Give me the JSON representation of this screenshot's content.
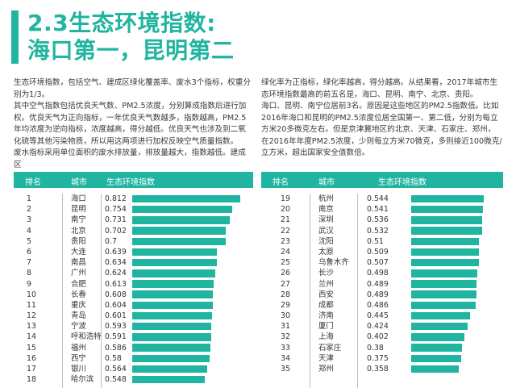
{
  "section": {
    "title_line1": "2.3生态环境指数:",
    "title_line2": "海口第一，昆明第二",
    "accent_color": "#1fb5a0"
  },
  "intro": {
    "left": [
      "生态环境指数，包括空气、建成区绿化覆盖率、废水3个指标，权重分别为1/3。",
      "其中空气指数包括优良天气数、PM2.5浓度，分别算成指数后进行加权。优良天气为正向指标，一年优良天气数越多，指数越高，PM2.5年均浓度为逆向指标，浓度越高，得分越低。优良天气也涉及到二氧化硫等其他污染物质，所以用这两项进行加权反映空气质量指数。",
      "废水指标采用单位面积的废水排放量，排放量越大，指数越低。建成区"
    ],
    "right": [
      "绿化率为正指标，绿化率越高，得分越高。从结果看，2017年城市生态环境指数最高的前五名是，海口、昆明、南宁、北京、贵阳。",
      "海口、昆明、南宁位居前3名。原因是这些地区的PM2.5指数低。比如2016年海口和昆明的PM2.5浓度位居全国第一、第二低，分别为每立方米20多微克左右。但是京津冀地区的北京、天津、石家庄、郑州，在2016年年度PM2.5浓度，少则每立方米70微克，多则接近100微克/立方米，超出国家安全值数倍。"
    ]
  },
  "table": {
    "headers": {
      "rank": "排名",
      "city": "城市",
      "index": "生态环境指数"
    },
    "left_rows": [
      {
        "rank": "1",
        "city": "海口",
        "value": "0.812"
      },
      {
        "rank": "2",
        "city": "昆明",
        "value": "0.754"
      },
      {
        "rank": "3",
        "city": "南宁",
        "value": "0.731"
      },
      {
        "rank": "4",
        "city": "北京",
        "value": "0.702"
      },
      {
        "rank": "5",
        "city": "贵阳",
        "value": "0.7"
      },
      {
        "rank": "6",
        "city": "大连",
        "value": "0.639"
      },
      {
        "rank": "7",
        "city": "南昌",
        "value": "0.634"
      },
      {
        "rank": "8",
        "city": "广州",
        "value": "0.624"
      },
      {
        "rank": "9",
        "city": "合肥",
        "value": "0.613"
      },
      {
        "rank": "10",
        "city": "长春",
        "value": "0.608"
      },
      {
        "rank": "11",
        "city": "重庆",
        "value": "0.604"
      },
      {
        "rank": "12",
        "city": "青岛",
        "value": "0.601"
      },
      {
        "rank": "13",
        "city": "宁波",
        "value": "0.593"
      },
      {
        "rank": "14",
        "city": "呼和浩特",
        "value": "0.591"
      },
      {
        "rank": "15",
        "city": "福州",
        "value": "0.586"
      },
      {
        "rank": "16",
        "city": "西宁",
        "value": "0.58"
      },
      {
        "rank": "17",
        "city": "银川",
        "value": "0.564"
      },
      {
        "rank": "18",
        "city": "哈尔滨",
        "value": "0.548"
      }
    ],
    "right_rows": [
      {
        "rank": "19",
        "city": "杭州",
        "value": "0.544"
      },
      {
        "rank": "20",
        "city": "南京",
        "value": "0.541"
      },
      {
        "rank": "21",
        "city": "深圳",
        "value": "0.536"
      },
      {
        "rank": "22",
        "city": "武汉",
        "value": "0.532"
      },
      {
        "rank": "23",
        "city": "沈阳",
        "value": "0.51"
      },
      {
        "rank": "24",
        "city": "太原",
        "value": "0.509"
      },
      {
        "rank": "25",
        "city": "乌鲁木齐",
        "value": "0.507"
      },
      {
        "rank": "26",
        "city": "长沙",
        "value": "0.498"
      },
      {
        "rank": "27",
        "city": "兰州",
        "value": "0.489"
      },
      {
        "rank": "28",
        "city": "西安",
        "value": "0.489"
      },
      {
        "rank": "29",
        "city": "成都",
        "value": "0.486"
      },
      {
        "rank": "30",
        "city": "济南",
        "value": "0.445"
      },
      {
        "rank": "31",
        "city": "厦门",
        "value": "0.424"
      },
      {
        "rank": "32",
        "city": "上海",
        "value": "0.402"
      },
      {
        "rank": "33",
        "city": "石家庄",
        "value": "0.38"
      },
      {
        "rank": "34",
        "city": "天津",
        "value": "0.375"
      },
      {
        "rank": "35",
        "city": "郑州",
        "value": "0.358"
      }
    ]
  }
}
